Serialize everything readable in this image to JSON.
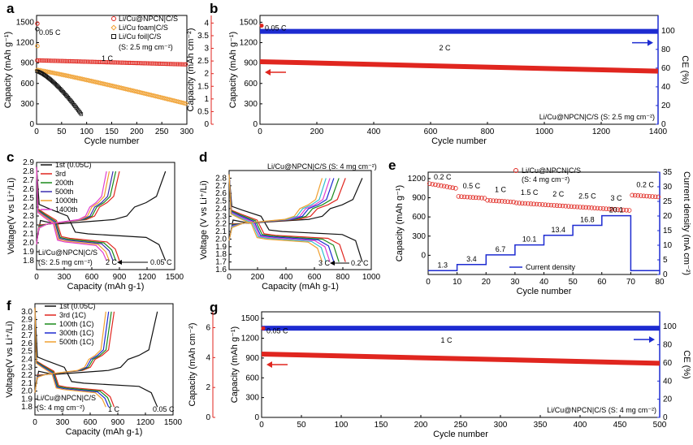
{
  "panel_labels": [
    "a",
    "b",
    "c",
    "d",
    "e",
    "f",
    "g"
  ],
  "colors": {
    "red": "#e0261f",
    "blue": "#1d2bd1",
    "orange": "#f0a030",
    "black": "#111111",
    "green": "#1a8a1a",
    "purple": "#3a2db0",
    "cyan": "#2fc0d0",
    "magenta": "#e040d0",
    "steel": "#5a6fd0"
  },
  "chart_data": [
    {
      "panel": "a",
      "type": "scatter",
      "xlabel": "Cycle number",
      "ylabel": "Capacity (mAh g-1)",
      "xlim": [
        0,
        300
      ],
      "ylim": [
        0,
        1600
      ],
      "xticks": [
        "0",
        "50",
        "100",
        "150",
        "200",
        "250",
        "300"
      ],
      "yticks": [
        "0",
        "300",
        "600",
        "900",
        "1200",
        "1500"
      ],
      "annotations": [
        "0.05 C",
        "1 C",
        "(S: 2.5 mg cm-2)"
      ],
      "series": [
        {
          "name": "Li/Cu@NPCN|C/S",
          "color": "red",
          "marker": "circle",
          "initial": 1480,
          "start": 940,
          "end": 880,
          "n": 300
        },
        {
          "name": "Li/Cu foam|C/S",
          "color": "orange",
          "marker": "diamond",
          "initial": 1150,
          "start": 800,
          "end": 300,
          "n": 300
        },
        {
          "name": "Li/Cu foil|C/S",
          "color": "black",
          "marker": "square",
          "initial": 1400,
          "start": 780,
          "end": 140,
          "n": 90
        }
      ]
    },
    {
      "panel": "b",
      "type": "scatter",
      "xlabel": "Cycle number",
      "ylabel": "Capacity (mAh g-1)",
      "ylabel_left": "Capacity (mAh cm-2)",
      "ylabel_right": "CE (%)",
      "xlim": [
        0,
        1400
      ],
      "ylim": [
        0,
        1600
      ],
      "xticks": [
        "0",
        "200",
        "400",
        "600",
        "800",
        "1000",
        "1200",
        "1400"
      ],
      "yticks": [
        "0",
        "300",
        "600",
        "900",
        "1200",
        "1500"
      ],
      "yticks_left": [
        "0",
        "0.5",
        "1",
        "1.5",
        "2",
        "2.5",
        "3",
        "3.5",
        "4"
      ],
      "yticks_right": [
        "0",
        "20",
        "40",
        "60",
        "80",
        "100"
      ],
      "annotations": [
        "0.05 C",
        "2 C",
        "Li/Cu@NPCN|C/S  (S: 2.5 mg cm-2)"
      ],
      "series": [
        {
          "name": "capacity",
          "color": "red",
          "start": 920,
          "end": 780,
          "initial": 1450
        },
        {
          "name": "CE",
          "color": "blue",
          "value": 99
        }
      ]
    },
    {
      "panel": "c",
      "type": "line",
      "xlabel": "Capacity (mAh g-1)",
      "ylabel": "Voltage(V vs Li+/Li)",
      "xlim": [
        0,
        1500
      ],
      "ylim": [
        1.7,
        2.9
      ],
      "xticks": [
        "0",
        "300",
        "600",
        "900",
        "1200",
        "1500"
      ],
      "yticks": [
        "1.8",
        "1.9",
        "2.0",
        "2.1",
        "2.2",
        "2.3",
        "2.4",
        "2.5",
        "2.6",
        "2.7",
        "2.8",
        "2.9"
      ],
      "annotations": [
        "Li/Cu@NPCN|C/S",
        "(S: 2.5 mg cm-2)",
        "2 C",
        "0.05 C"
      ],
      "series": [
        {
          "name": "1st (0.05C)",
          "color": "black",
          "cap": 1400
        },
        {
          "name": "3rd",
          "color": "red",
          "cap": 900
        },
        {
          "name": "200th",
          "color": "green",
          "cap": 860
        },
        {
          "name": "500th",
          "color": "purple",
          "cap": 830
        },
        {
          "name": "1000th",
          "color": "orange",
          "cap": 790
        },
        {
          "name": "1400th",
          "color": "magenta",
          "cap": 760
        }
      ]
    },
    {
      "panel": "d",
      "type": "line",
      "xlabel": "Capacity (mAh g-1)",
      "ylabel": "Voltage (V vs Li+/Li)",
      "xlim": [
        0,
        1100
      ],
      "ylim": [
        1.6,
        2.9
      ],
      "xticks": [
        "0",
        "200",
        "400",
        "600",
        "800",
        "1000"
      ],
      "yticks": [
        "1.6",
        "1.7",
        "1.8",
        "1.9",
        "2.0",
        "2.1",
        "2.2",
        "2.3",
        "2.4",
        "2.5",
        "2.6",
        "2.7",
        "2.8"
      ],
      "annotations": [
        "Li/Cu@NPCN|C/S (S: 4 mg cm-2)",
        "3 C",
        "0.2 C"
      ],
      "series": [
        {
          "name": "0.2 C",
          "color": "black",
          "cap": 1030
        },
        {
          "name": "0.5 C",
          "color": "red",
          "cap": 900
        },
        {
          "name": "1 C",
          "color": "green",
          "cap": 850
        },
        {
          "name": "1.5 C",
          "color": "blue",
          "cap": 810
        },
        {
          "name": "2 C",
          "color": "magenta",
          "cap": 780
        },
        {
          "name": "2.5 C",
          "color": "cyan",
          "cap": 750
        },
        {
          "name": "3 C",
          "color": "orange",
          "cap": 720
        }
      ]
    },
    {
      "panel": "e",
      "type": "scatter",
      "xlabel": "Cycle number",
      "ylabel": "Capacity (mAh g-1)",
      "ylabel_right": "Current density (mA cm-2)",
      "xlim": [
        0,
        80
      ],
      "ylim": [
        -300,
        1300
      ],
      "xticks": [
        "0",
        "10",
        "20",
        "30",
        "40",
        "50",
        "60",
        "70",
        "80"
      ],
      "yticks": [
        "0",
        "300",
        "600",
        "900",
        "1200"
      ],
      "yticks_right": [
        "0",
        "5",
        "10",
        "15",
        "20",
        "25",
        "30",
        "35"
      ],
      "legend": [
        "Li/Cu@NPCN|C/S",
        "(S: 4 mg cm-2)",
        "Current density"
      ],
      "rates": [
        "0.2 C",
        "0.5 C",
        "1 C",
        "1.5 C",
        "2 C",
        "2.5 C",
        "3 C",
        "0.2 C"
      ],
      "rate_capacities": [
        1060,
        920,
        860,
        820,
        790,
        760,
        730,
        940
      ],
      "current_density": [
        "1.3",
        "3.4",
        "6.7",
        "10.1",
        "13.4",
        "16.8",
        "20.1"
      ],
      "current_values": [
        1.3,
        3.4,
        6.7,
        10.1,
        13.4,
        16.8,
        20.1,
        1.3
      ]
    },
    {
      "panel": "f",
      "type": "line",
      "xlabel": "Capacity (mAh g-1)",
      "ylabel": "Voltage(V vs Li+/Li)",
      "xlim": [
        0,
        1500
      ],
      "ylim": [
        1.7,
        3.1
      ],
      "xticks": [
        "0",
        "300",
        "600",
        "900",
        "1200",
        "1500"
      ],
      "yticks": [
        "1.8",
        "1.9",
        "2.0",
        "2.1",
        "2.2",
        "2.3",
        "2.4",
        "2.5",
        "2.6",
        "2.7",
        "2.8",
        "2.9",
        "3.0"
      ],
      "annotations": [
        "Li/Cu@NPCN|C/S",
        "(S: 4 mg cm-2)",
        "1 C",
        "0.05 C"
      ],
      "series": [
        {
          "name": "1st (0.05C)",
          "color": "black",
          "cap": 1330
        },
        {
          "name": "3rd (1C)",
          "color": "red",
          "cap": 860
        },
        {
          "name": "100th (1C)",
          "color": "green",
          "cap": 830
        },
        {
          "name": "300th (1C)",
          "color": "blue",
          "cap": 800
        },
        {
          "name": "500th (1C)",
          "color": "orange",
          "cap": 770
        }
      ]
    },
    {
      "panel": "g",
      "type": "scatter",
      "xlabel": "Cycle number",
      "ylabel": "Capacity (mAh g-1)",
      "ylabel_left": "Capacity (mAh cm-2)",
      "ylabel_right": "CE (%)",
      "xlim": [
        0,
        500
      ],
      "ylim": [
        0,
        1600
      ],
      "xticks": [
        "0",
        "50",
        "100",
        "150",
        "200",
        "250",
        "300",
        "350",
        "400",
        "450",
        "500"
      ],
      "yticks": [
        "0",
        "300",
        "600",
        "900",
        "1200",
        "1500"
      ],
      "yticks_left": [
        "0",
        "2",
        "4",
        "6"
      ],
      "yticks_right": [
        "0",
        "20",
        "40",
        "60",
        "80",
        "100"
      ],
      "annotations": [
        "0.05 C",
        "1 C",
        "Li/Cu@NPCN|C/S  (S: 4 mg cm-2)"
      ],
      "series": [
        {
          "name": "capacity",
          "color": "red",
          "start": 960,
          "end": 820,
          "initial": 1350
        },
        {
          "name": "CE",
          "color": "blue",
          "value": 98
        }
      ]
    }
  ]
}
